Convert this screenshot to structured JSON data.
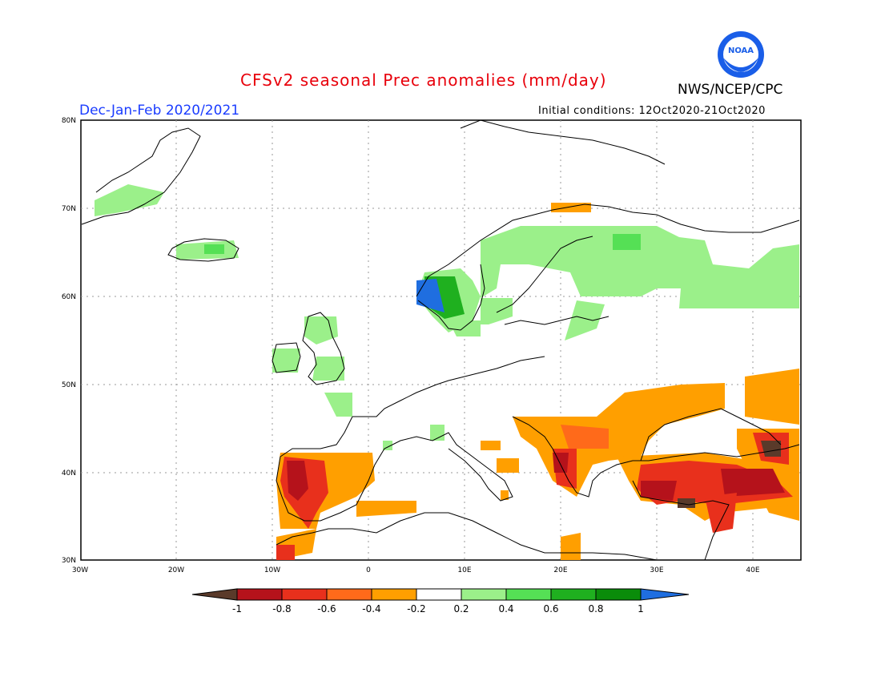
{
  "header": {
    "title": "CFSv2 seasonal Prec anomalies (mm/day)",
    "organization": "NWS/NCEP/CPC",
    "season": "Dec-Jan-Feb 2020/2021",
    "initial_conditions": "Initial conditions: 12Oct2020-21Oct2020",
    "logo_text": "NOAA"
  },
  "map": {
    "lat_labels": [
      "80N",
      "70N",
      "60N",
      "50N",
      "40N",
      "30N"
    ],
    "lon_labels": [
      "30W",
      "20W",
      "10W",
      "0",
      "10E",
      "20E",
      "30E",
      "40E"
    ]
  },
  "colorbar": {
    "labels": [
      "-1",
      "-0.8",
      "-0.6",
      "-0.4",
      "-0.2",
      "0.2",
      "0.4",
      "0.6",
      "0.8",
      "1"
    ],
    "colors": [
      "#5a3a2a",
      "#b5121b",
      "#e8301c",
      "#ff6a1a",
      "#ff9f00",
      "#ffffff",
      "#9bf08a",
      "#55e055",
      "#1fb01f",
      "#0a8c0a",
      "#1f6ee0"
    ]
  }
}
